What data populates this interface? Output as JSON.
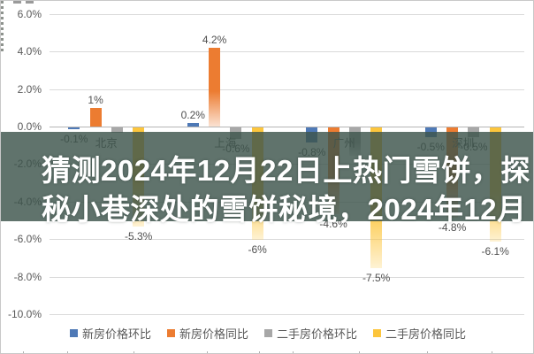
{
  "overlay": {
    "line1": "猜测2024年12月22日上热门雪饼，探",
    "line2": "秘小巷深处的雪饼秘境，2024年12月",
    "background": "#3d544c",
    "text_color": "#ffffff"
  },
  "chart_data": {
    "type": "bar",
    "title": "",
    "categories": [
      "北京",
      "上海",
      "广州",
      "深圳"
    ],
    "series": [
      {
        "name": "新房价格环比",
        "color": "#4e79b6",
        "values": [
          -0.1,
          0.2,
          -0.8,
          -0.5
        ],
        "labels": [
          "-0.1%",
          "0.2%",
          "-0.8%",
          "-0.5%"
        ]
      },
      {
        "name": "新房价格同比",
        "color": "#ec7c31",
        "values": [
          1.0,
          4.2,
          -4.6,
          -4.8
        ],
        "labels": [
          "1%",
          "4.2%",
          "-4.6%",
          "-4.8%"
        ]
      },
      {
        "name": "二手房价格环比",
        "color": "#a7a7a7",
        "values": [
          -0.3,
          -0.6,
          -1.5,
          -0.5
        ],
        "labels": [
          null,
          "-0.6%",
          null,
          "-0.5%"
        ]
      },
      {
        "name": "二手房价格同比",
        "color": "#fcc53c",
        "values": [
          -5.3,
          -6.0,
          -7.5,
          -6.1
        ],
        "labels": [
          "-5.3%",
          "-6%",
          "-7.5%",
          "-6.1%"
        ]
      }
    ],
    "ylim": [
      -10,
      6
    ],
    "ytick_step": 2,
    "ytick_labels": [
      "6.0%",
      "4.0%",
      "2.0%",
      "0.0%",
      "-2.0%",
      "-4.0%",
      "-6.0%",
      "-8.0%",
      "-10.0%"
    ],
    "grid": true,
    "legend_position": "bottom",
    "axis_text_color": "#5a5a5a"
  }
}
